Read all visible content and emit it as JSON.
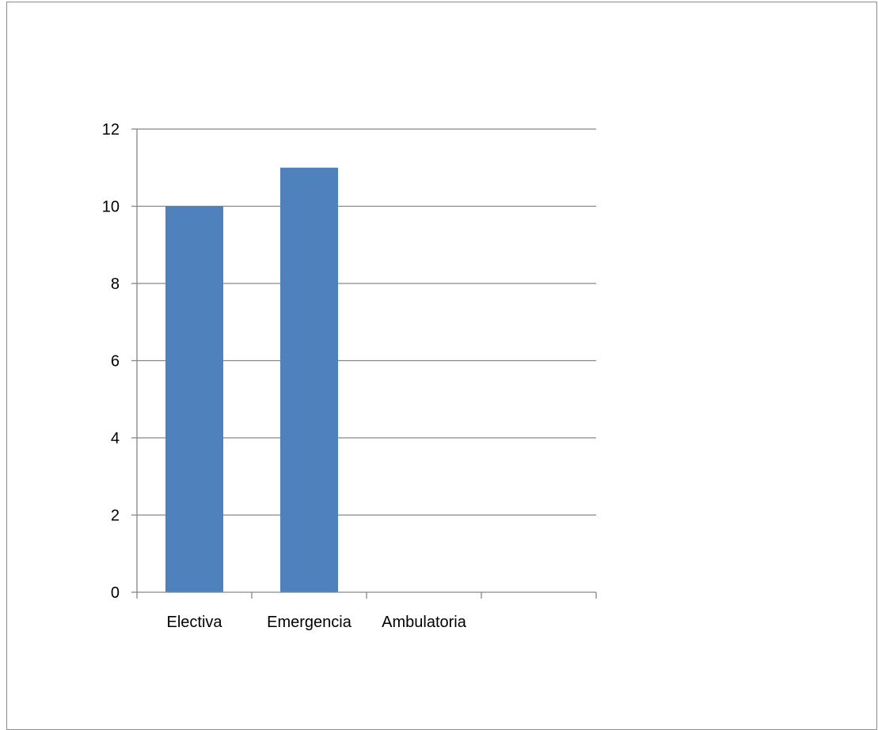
{
  "chart_data": {
    "type": "bar",
    "categories": [
      "Electiva",
      "Emergencia",
      "Ambulatoria",
      ""
    ],
    "values": [
      10,
      11,
      null,
      null
    ],
    "ylim": [
      0,
      12
    ],
    "yticks": [
      0,
      2,
      4,
      6,
      8,
      10,
      12
    ],
    "grid": true,
    "legend": "none",
    "bar_color": "#4F81BD",
    "grid_color": "#868686"
  }
}
